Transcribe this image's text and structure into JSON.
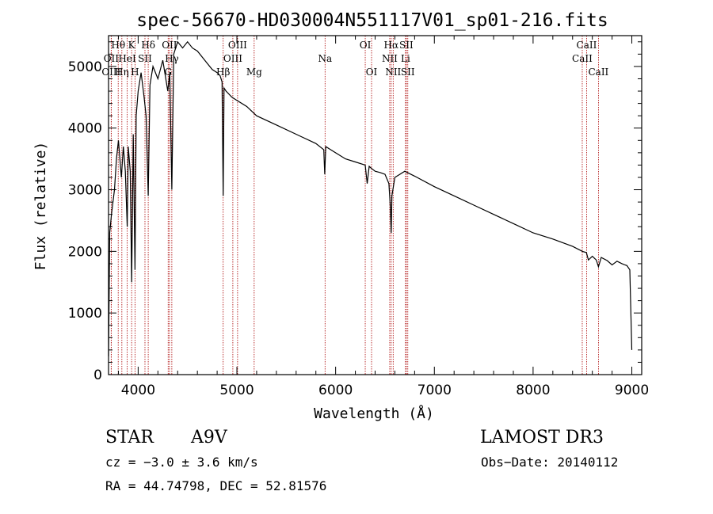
{
  "chart_data": {
    "type": "line",
    "title": "spec-56670-HD030004N551117V01_sp01-216.fits",
    "xlabel": "Wavelength (Å)",
    "ylabel": "Flux (relative)",
    "xlim": [
      3700,
      9100
    ],
    "ylim": [
      0,
      5500
    ],
    "xticks": [
      4000,
      5000,
      6000,
      7000,
      8000,
      9000
    ],
    "yticks": [
      0,
      1000,
      2000,
      3000,
      4000,
      5000
    ],
    "series": [
      {
        "name": "flux",
        "x": [
          3700,
          3712,
          3730,
          3760,
          3780,
          3800,
          3830,
          3850,
          3870,
          3889,
          3900,
          3920,
          3934,
          3950,
          3968,
          3980,
          4000,
          4030,
          4060,
          4080,
          4102,
          4120,
          4150,
          4200,
          4250,
          4300,
          4320,
          4341,
          4360,
          4400,
          4450,
          4500,
          4550,
          4600,
          4650,
          4700,
          4750,
          4800,
          4830,
          4850,
          4861,
          4870,
          4890,
          4950,
          5000,
          5100,
          5200,
          5400,
          5600,
          5800,
          5880,
          5890,
          5900,
          5950,
          6000,
          6100,
          6200,
          6300,
          6320,
          6340,
          6360,
          6400,
          6450,
          6500,
          6540,
          6555,
          6563,
          6570,
          6600,
          6650,
          6700,
          6800,
          7000,
          7200,
          7400,
          7600,
          7800,
          8000,
          8200,
          8400,
          8500,
          8540,
          8560,
          8600,
          8640,
          8662,
          8690,
          8750,
          8800,
          8850,
          8900,
          8930,
          8950,
          8980,
          9000
        ],
        "values": [
          300,
          2300,
          2600,
          3000,
          3500,
          3800,
          3200,
          3700,
          3300,
          2400,
          3700,
          3300,
          1500,
          3900,
          1700,
          4200,
          4600,
          4900,
          4500,
          4200,
          2900,
          4700,
          5000,
          4800,
          5100,
          4600,
          4900,
          3000,
          5200,
          5400,
          5300,
          5400,
          5300,
          5250,
          5150,
          5050,
          4950,
          4900,
          4850,
          4750,
          2900,
          4650,
          4600,
          4500,
          4450,
          4350,
          4200,
          4050,
          3900,
          3750,
          3650,
          3250,
          3700,
          3650,
          3600,
          3500,
          3450,
          3400,
          3100,
          3380,
          3350,
          3300,
          3280,
          3250,
          3100,
          2700,
          2300,
          2900,
          3200,
          3250,
          3300,
          3220,
          3050,
          2900,
          2750,
          2600,
          2450,
          2300,
          2200,
          2080,
          2000,
          1980,
          1860,
          1920,
          1860,
          1750,
          1900,
          1850,
          1780,
          1840,
          1800,
          1780,
          1770,
          1700,
          400
        ]
      }
    ],
    "line_markers": [
      {
        "label": "Hθ",
        "x": 3798,
        "row": 1
      },
      {
        "label": "OII",
        "x": 3727,
        "row": 2
      },
      {
        "label": "OIII",
        "x": 3727,
        "row": 3
      },
      {
        "label": "Hη",
        "x": 3835,
        "row": 3
      },
      {
        "label": "HeI",
        "x": 3889,
        "row": 2
      },
      {
        "label": "K",
        "x": 3934,
        "row": 1
      },
      {
        "label": "SII",
        "x": 4069,
        "row": 2
      },
      {
        "label": "H",
        "x": 3968,
        "row": 3
      },
      {
        "label": "Hδ",
        "x": 4102,
        "row": 1
      },
      {
        "label": "OII",
        "x": 4317,
        "row": 1
      },
      {
        "label": "Hγ",
        "x": 4341,
        "row": 2
      },
      {
        "label": "G",
        "x": 4304,
        "row": 3
      },
      {
        "label": "OIII",
        "x": 5007,
        "row": 1
      },
      {
        "label": "OIII",
        "x": 4959,
        "row": 2
      },
      {
        "label": "Hβ",
        "x": 4861,
        "row": 3
      },
      {
        "label": "Mg",
        "x": 5175,
        "row": 3
      },
      {
        "label": "Na",
        "x": 5893,
        "row": 2
      },
      {
        "label": "OI",
        "x": 6300,
        "row": 1
      },
      {
        "label": "OI",
        "x": 6364,
        "row": 3
      },
      {
        "label": "Hα",
        "x": 6563,
        "row": 1
      },
      {
        "label": "SII",
        "x": 6716,
        "row": 1
      },
      {
        "label": "NII",
        "x": 6548,
        "row": 2
      },
      {
        "label": "Li",
        "x": 6708,
        "row": 2
      },
      {
        "label": "NII",
        "x": 6583,
        "row": 3
      },
      {
        "label": "SII",
        "x": 6731,
        "row": 3
      },
      {
        "label": "CaII",
        "x": 8542,
        "row": 1
      },
      {
        "label": "CaII",
        "x": 8498,
        "row": 2
      },
      {
        "label": "CaII",
        "x": 8662,
        "row": 3
      }
    ],
    "marker_color": "#aa0000"
  },
  "info": {
    "object_class": "STAR",
    "subclass": "A9V",
    "survey": "LAMOST DR3",
    "cz": "cz = −3.0 ± 3.6 km/s",
    "obs_date": "Obs−Date: 20140112",
    "coords": "RA =  44.74798, DEC =  52.81576"
  }
}
